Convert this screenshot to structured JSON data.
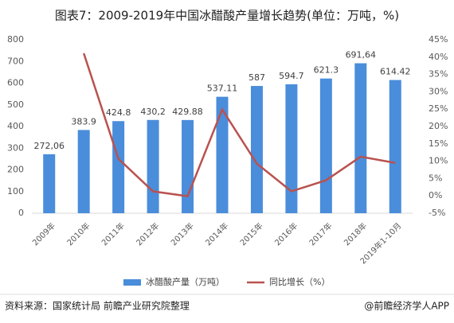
{
  "chart_data": {
    "type": "bar-line",
    "title": "图表7：2009-2019年中国冰醋酸产量增长趋势(单位：万吨，%)",
    "categories": [
      "2009年",
      "2010年",
      "2011年",
      "2012年",
      "2013年",
      "2014年",
      "2015年",
      "2016年",
      "2017年",
      "2018年",
      "2019年1-10月"
    ],
    "series": [
      {
        "name": "冰醋酸产量（万吨）",
        "type": "bar",
        "color": "#4a8ddb",
        "values": [
          272.06,
          383.9,
          424.8,
          430.2,
          429.88,
          537.11,
          587,
          594.7,
          621.3,
          691.64,
          614.42
        ],
        "value_labels": [
          "272,06",
          "383.9",
          "424.8",
          "430,2",
          "429.88",
          "537.11",
          "587",
          "594.7",
          "621.3",
          "691,64",
          "614.42"
        ]
      },
      {
        "name": "同比增长（%）",
        "type": "line",
        "axis": "y2",
        "color": "#b9524f",
        "values": [
          null,
          41.1,
          10.7,
          1.3,
          -0.1,
          24.9,
          9.3,
          1.3,
          4.5,
          11.3,
          9.5
        ]
      }
    ],
    "ylim": [
      0,
      800
    ],
    "yticks": [
      0,
      100,
      200,
      300,
      400,
      500,
      600,
      700,
      800
    ],
    "y2lim": [
      -5,
      45
    ],
    "y2ticks": [
      {
        "value": -5,
        "label": "-5%"
      },
      {
        "value": 0,
        "label": "0%"
      },
      {
        "value": 5,
        "label": "5%"
      },
      {
        "value": 10,
        "label": "10%"
      },
      {
        "value": 15,
        "label": "15%"
      },
      {
        "value": 20,
        "label": "20%"
      },
      {
        "value": 25,
        "label": "25%"
      },
      {
        "value": 30,
        "label": "30%"
      },
      {
        "value": 35,
        "label": "35%"
      },
      {
        "value": 40,
        "label": "40%"
      },
      {
        "value": 45,
        "label": "45%"
      }
    ],
    "grid": false,
    "legend": "bottom"
  },
  "source": "资料来源：国家统计局 前瞻产业研究院整理",
  "credit": "@前瞻经济学人APP"
}
